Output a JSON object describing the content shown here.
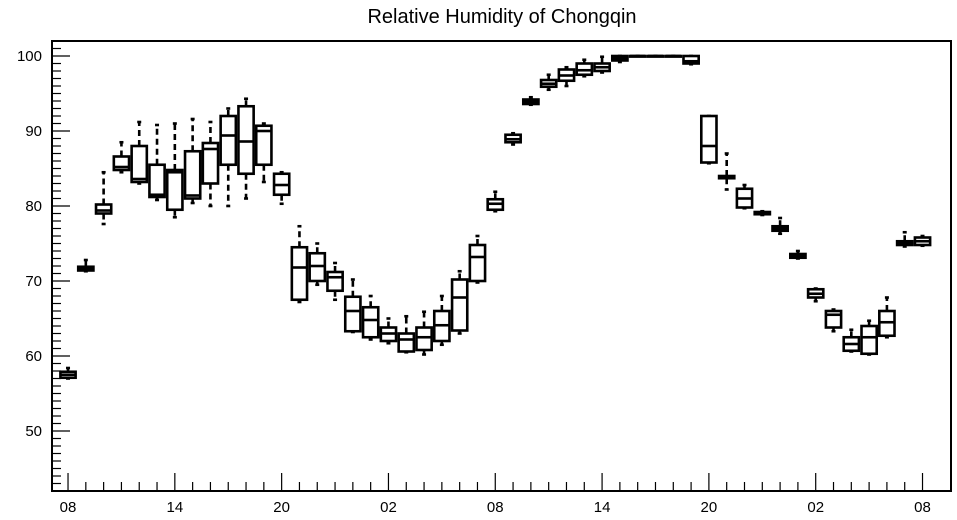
{
  "chart_data": {
    "type": "box",
    "title": "Relative Humidity of Chongqin",
    "xlabel": "",
    "ylabel": "",
    "ylim": [
      42,
      102
    ],
    "xlim": [
      -0.9,
      49.6
    ],
    "y_ticks": [
      50,
      60,
      70,
      80,
      90,
      100
    ],
    "x_ticks": [
      {
        "pos": 0,
        "label": "08"
      },
      {
        "pos": 6,
        "label": "14"
      },
      {
        "pos": 12,
        "label": "20"
      },
      {
        "pos": 18,
        "label": "02"
      },
      {
        "pos": 24,
        "label": "08"
      },
      {
        "pos": 30,
        "label": "14"
      },
      {
        "pos": 36,
        "label": "20"
      },
      {
        "pos": 42,
        "label": "02"
      },
      {
        "pos": 48,
        "label": "08"
      }
    ],
    "boxes": [
      {
        "x": 0,
        "min": 57.0,
        "q1": 57.1,
        "median": 57.5,
        "q3": 57.9,
        "max": 58.4
      },
      {
        "x": 1,
        "min": 71.3,
        "q1": 71.4,
        "median": 71.6,
        "q3": 71.9,
        "max": 72.8
      },
      {
        "x": 2,
        "min": 77.6,
        "q1": 79.0,
        "median": 79.4,
        "q3": 80.2,
        "max": 84.5
      },
      {
        "x": 3,
        "min": 84.5,
        "q1": 84.8,
        "median": 85.2,
        "q3": 86.6,
        "max": 88.5
      },
      {
        "x": 4,
        "min": 83.0,
        "q1": 83.2,
        "median": 83.6,
        "q3": 88.0,
        "max": 91.2
      },
      {
        "x": 5,
        "min": 80.8,
        "q1": 81.2,
        "median": 81.5,
        "q3": 85.5,
        "max": 90.8
      },
      {
        "x": 6,
        "min": 78.5,
        "q1": 79.5,
        "median": 84.5,
        "q3": 84.8,
        "max": 91.0
      },
      {
        "x": 7,
        "min": 80.4,
        "q1": 81.0,
        "median": 81.4,
        "q3": 87.3,
        "max": 91.6
      },
      {
        "x": 8,
        "min": 80.0,
        "q1": 83.0,
        "median": 87.6,
        "q3": 88.4,
        "max": 91.2
      },
      {
        "x": 9,
        "min": 80.0,
        "q1": 85.5,
        "median": 89.4,
        "q3": 92.0,
        "max": 93.0
      },
      {
        "x": 10,
        "min": 81.0,
        "q1": 84.3,
        "median": 88.6,
        "q3": 93.3,
        "max": 94.3
      },
      {
        "x": 11,
        "min": 83.2,
        "q1": 85.5,
        "median": 90.0,
        "q3": 90.7,
        "max": 91.0
      },
      {
        "x": 12,
        "min": 80.3,
        "q1": 81.5,
        "median": 82.8,
        "q3": 84.3,
        "max": 84.5
      },
      {
        "x": 13,
        "min": 67.2,
        "q1": 67.5,
        "median": 71.8,
        "q3": 74.5,
        "max": 77.3
      },
      {
        "x": 14,
        "min": 69.5,
        "q1": 70.0,
        "median": 72.0,
        "q3": 73.7,
        "max": 75.0
      },
      {
        "x": 15,
        "min": 67.5,
        "q1": 68.7,
        "median": 70.5,
        "q3": 71.2,
        "max": 72.4
      },
      {
        "x": 16,
        "min": 63.2,
        "q1": 63.3,
        "median": 66.0,
        "q3": 67.9,
        "max": 70.2
      },
      {
        "x": 17,
        "min": 62.2,
        "q1": 62.5,
        "median": 64.8,
        "q3": 66.5,
        "max": 68.0
      },
      {
        "x": 18,
        "min": 61.7,
        "q1": 62.0,
        "median": 63.0,
        "q3": 63.8,
        "max": 65.0
      },
      {
        "x": 19,
        "min": 60.5,
        "q1": 60.6,
        "median": 62.2,
        "q3": 63.0,
        "max": 65.3
      },
      {
        "x": 20,
        "min": 60.2,
        "q1": 60.8,
        "median": 62.5,
        "q3": 63.8,
        "max": 65.9
      },
      {
        "x": 21,
        "min": 61.5,
        "q1": 62.0,
        "median": 64.1,
        "q3": 66.0,
        "max": 68.0
      },
      {
        "x": 22,
        "min": 63.0,
        "q1": 63.4,
        "median": 67.8,
        "q3": 70.2,
        "max": 71.3
      },
      {
        "x": 23,
        "min": 69.8,
        "q1": 70.0,
        "median": 73.2,
        "q3": 74.8,
        "max": 76.0
      },
      {
        "x": 24,
        "min": 79.3,
        "q1": 79.5,
        "median": 80.3,
        "q3": 80.9,
        "max": 81.9
      },
      {
        "x": 25,
        "min": 88.2,
        "q1": 88.5,
        "median": 88.9,
        "q3": 89.5,
        "max": 89.7
      },
      {
        "x": 26,
        "min": 93.5,
        "q1": 93.6,
        "median": 93.9,
        "q3": 94.2,
        "max": 94.5
      },
      {
        "x": 27,
        "min": 95.5,
        "q1": 95.9,
        "median": 96.3,
        "q3": 96.8,
        "max": 97.5
      },
      {
        "x": 28,
        "min": 96.0,
        "q1": 96.7,
        "median": 97.4,
        "q3": 98.2,
        "max": 98.5
      },
      {
        "x": 29,
        "min": 97.3,
        "q1": 97.5,
        "median": 98.1,
        "q3": 99.0,
        "max": 99.5
      },
      {
        "x": 30,
        "min": 97.8,
        "q1": 98.0,
        "median": 98.5,
        "q3": 99.0,
        "max": 99.9
      },
      {
        "x": 31,
        "min": 99.2,
        "q1": 99.4,
        "median": 99.7,
        "q3": 100.0,
        "max": 100.0
      },
      {
        "x": 32,
        "min": 100.0,
        "q1": 100.0,
        "median": 100.0,
        "q3": 100.0,
        "max": 100.0
      },
      {
        "x": 33,
        "min": 100.0,
        "q1": 100.0,
        "median": 100.0,
        "q3": 100.0,
        "max": 100.0
      },
      {
        "x": 34,
        "min": 100.0,
        "q1": 100.0,
        "median": 100.0,
        "q3": 100.0,
        "max": 100.0
      },
      {
        "x": 35,
        "min": 98.9,
        "q1": 99.0,
        "median": 99.3,
        "q3": 100.0,
        "max": 100.0
      },
      {
        "x": 36,
        "min": 85.7,
        "q1": 85.8,
        "median": 88.0,
        "q3": 92.0,
        "max": 92.0
      },
      {
        "x": 37,
        "min": 82.2,
        "q1": 83.7,
        "median": 83.9,
        "q3": 84.0,
        "max": 87.0
      },
      {
        "x": 38,
        "min": 79.7,
        "q1": 79.8,
        "median": 81.0,
        "q3": 82.3,
        "max": 82.8
      },
      {
        "x": 39,
        "min": 78.8,
        "q1": 78.9,
        "median": 79.0,
        "q3": 79.2,
        "max": 79.3
      },
      {
        "x": 40,
        "min": 76.3,
        "q1": 76.7,
        "median": 77.0,
        "q3": 77.3,
        "max": 78.4
      },
      {
        "x": 41,
        "min": 73.0,
        "q1": 73.1,
        "median": 73.3,
        "q3": 73.6,
        "max": 74.0
      },
      {
        "x": 42,
        "min": 67.3,
        "q1": 67.8,
        "median": 68.3,
        "q3": 68.9,
        "max": 69.0
      },
      {
        "x": 43,
        "min": 63.3,
        "q1": 63.8,
        "median": 65.5,
        "q3": 66.0,
        "max": 66.2
      },
      {
        "x": 44,
        "min": 60.6,
        "q1": 60.7,
        "median": 61.6,
        "q3": 62.5,
        "max": 63.5
      },
      {
        "x": 45,
        "min": 60.2,
        "q1": 60.3,
        "median": 62.5,
        "q3": 64.0,
        "max": 64.7
      },
      {
        "x": 46,
        "min": 62.5,
        "q1": 62.7,
        "median": 64.5,
        "q3": 66.0,
        "max": 67.8
      },
      {
        "x": 47,
        "min": 74.6,
        "q1": 74.8,
        "median": 75.0,
        "q3": 75.3,
        "max": 76.5
      },
      {
        "x": 48,
        "min": 74.7,
        "q1": 74.8,
        "median": 75.3,
        "q3": 75.8,
        "max": 76.0
      }
    ]
  }
}
